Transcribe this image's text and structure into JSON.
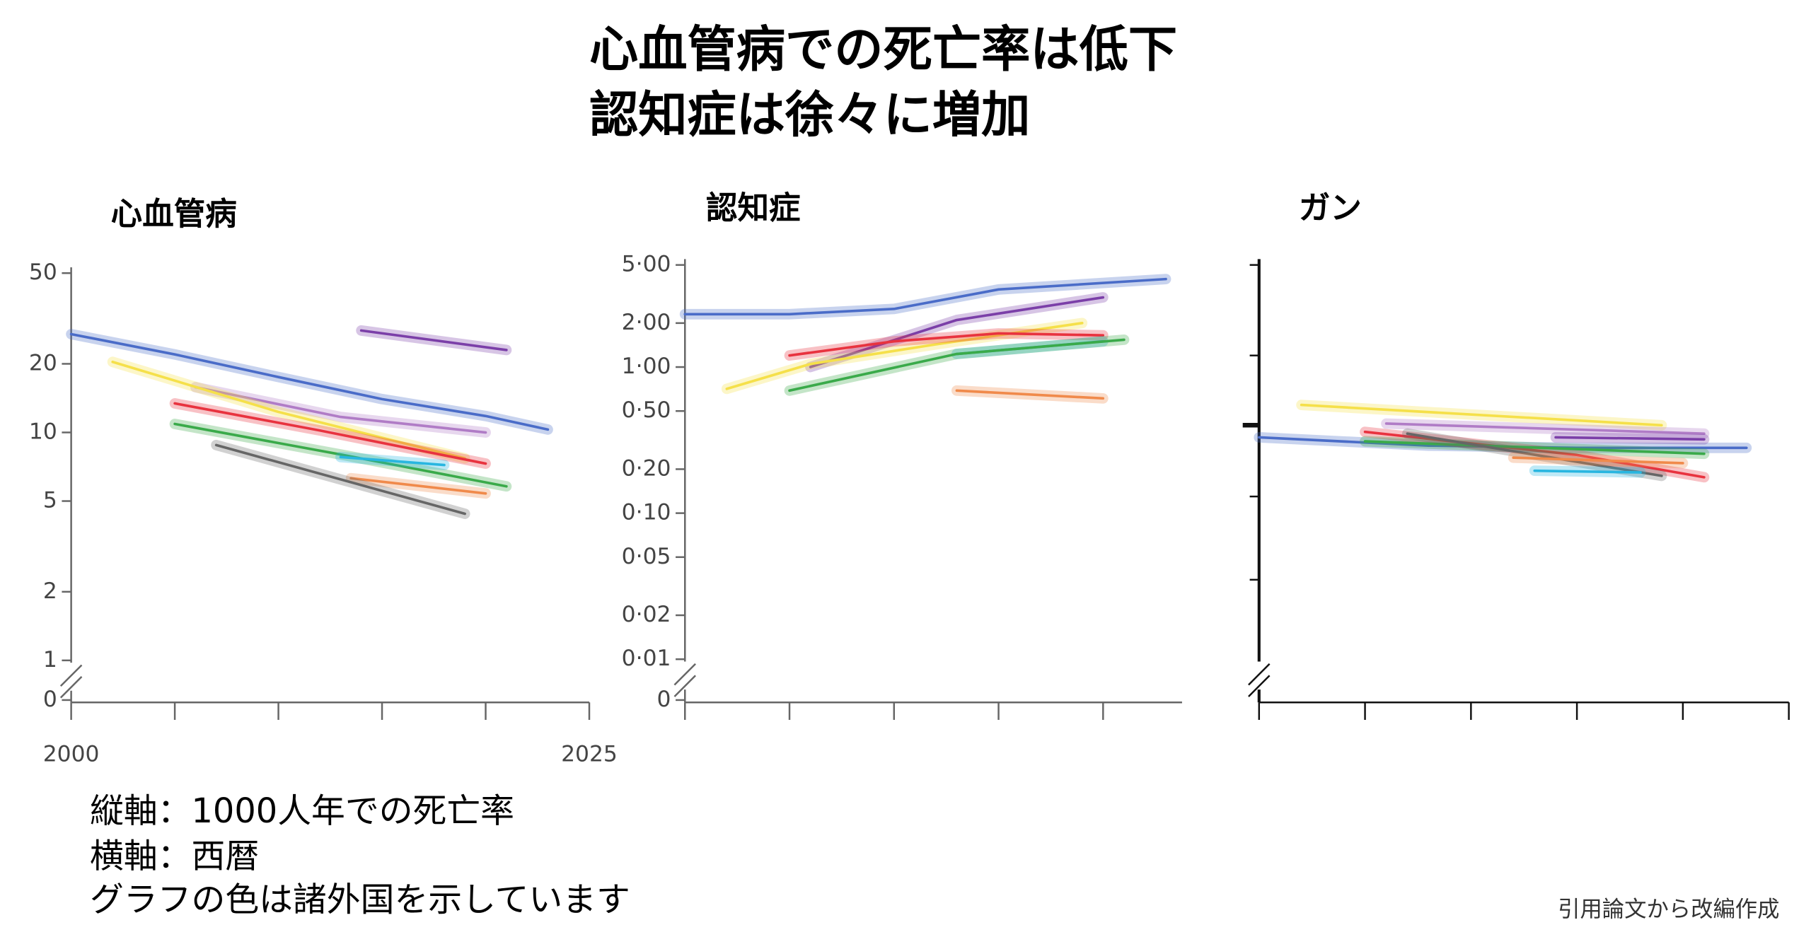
{
  "page": {
    "title_lines": [
      "心血管病での死亡率は低下",
      "認知症は徐々に増加"
    ],
    "notes": [
      "縦軸：1000人年での死亡率",
      "横軸：西暦",
      "グラフの色は諸外国を示しています"
    ],
    "credit": "引用論文から改編作成"
  },
  "chart_data": [
    {
      "type": "line",
      "title": "心血管病",
      "yscale": "log",
      "xlim": [
        2000,
        2025
      ],
      "xticks": [
        2000,
        2025
      ],
      "minor_xticks": [
        2000,
        2005,
        2010,
        2015,
        2020,
        2025
      ],
      "ylim": [
        1,
        50
      ],
      "yticks": [
        1,
        2,
        5,
        10,
        20,
        50
      ],
      "zero_tick": 0,
      "series": [
        {
          "color": "#4a6cc8",
          "x": [
            2000,
            2005,
            2010,
            2015,
            2020,
            2023
          ],
          "values": [
            27,
            22,
            17.5,
            14,
            11.8,
            10.3
          ]
        },
        {
          "color": "#7b3fa8",
          "x": [
            2014,
            2021
          ],
          "values": [
            28,
            23
          ]
        },
        {
          "color": "#b07cc6",
          "x": [
            2006,
            2013,
            2020
          ],
          "values": [
            15.8,
            11.7,
            10
          ]
        },
        {
          "color": "#f5e04a",
          "x": [
            2002,
            2010,
            2019
          ],
          "values": [
            20.4,
            12.3,
            7.7
          ]
        },
        {
          "color": "#e8333f",
          "x": [
            2005,
            2012,
            2020
          ],
          "values": [
            13.4,
            10.2,
            7.3
          ]
        },
        {
          "color": "#3aaa4a",
          "x": [
            2005,
            2013,
            2021
          ],
          "values": [
            10.9,
            8,
            5.8
          ]
        },
        {
          "color": "#29b6e0",
          "x": [
            2013,
            2018
          ],
          "values": [
            7.8,
            7.2
          ]
        },
        {
          "color": "#f08a4b",
          "x": [
            2013.5,
            2020
          ],
          "values": [
            6.3,
            5.4
          ]
        },
        {
          "color": "#666666",
          "x": [
            2007,
            2019
          ],
          "values": [
            8.8,
            4.4
          ]
        }
      ]
    },
    {
      "type": "line",
      "title": "認知症",
      "yscale": "log",
      "xlim": [
        2000,
        2024
      ],
      "minor_xticks": [
        2000,
        2005,
        2010,
        2015,
        2020
      ],
      "ylim": [
        0.01,
        5
      ],
      "yticks": [
        {
          "value": 0.01,
          "label": "0·01"
        },
        {
          "value": 0.02,
          "label": "0·02"
        },
        {
          "value": 0.05,
          "label": "0·05"
        },
        {
          "value": 0.1,
          "label": "0·10"
        },
        {
          "value": 0.2,
          "label": "0·20"
        },
        {
          "value": 0.5,
          "label": "0·50"
        },
        {
          "value": 1,
          "label": "1·00"
        },
        {
          "value": 2,
          "label": "2·00"
        },
        {
          "value": 5,
          "label": "5·00"
        }
      ],
      "zero_tick": 0,
      "series": [
        {
          "color": "#4a6cc8",
          "x": [
            2000,
            2005,
            2010,
            2015,
            2023
          ],
          "values": [
            2.3,
            2.3,
            2.5,
            3.4,
            4.0
          ]
        },
        {
          "color": "#7b3fa8",
          "x": [
            2006,
            2013,
            2020
          ],
          "values": [
            1.0,
            2.1,
            3.0
          ]
        },
        {
          "color": "#f5e04a",
          "x": [
            2002,
            2006,
            2012,
            2019
          ],
          "values": [
            0.71,
            1.05,
            1.43,
            2.0
          ]
        },
        {
          "color": "#e8333f",
          "x": [
            2005,
            2010,
            2015,
            2020
          ],
          "values": [
            1.2,
            1.5,
            1.7,
            1.65
          ]
        },
        {
          "color": "#29b6e0",
          "x": [
            2013,
            2020
          ],
          "values": [
            1.23,
            1.5
          ]
        },
        {
          "color": "#3aaa4a",
          "x": [
            2005,
            2013,
            2021
          ],
          "values": [
            0.69,
            1.23,
            1.54
          ]
        },
        {
          "color": "#f08a4b",
          "x": [
            2013,
            2020
          ],
          "values": [
            0.69,
            0.61
          ]
        }
      ]
    },
    {
      "type": "line",
      "title": "ガン",
      "yscale": "log",
      "xlim": [
        2000,
        2025
      ],
      "minor_xticks": [
        2000,
        2005,
        2010,
        2015,
        2020,
        2025
      ],
      "ylim": [
        0.01,
        5
      ],
      "minor_yticks": [
        0.035,
        0.13,
        0.4,
        1.2,
        5
      ],
      "highlight_ytick": 0.4,
      "series": [
        {
          "color": "#f5e04a",
          "x": [
            2002,
            2019
          ],
          "values": [
            0.55,
            0.4
          ]
        },
        {
          "color": "#4a6cc8",
          "x": [
            2000,
            2008,
            2015,
            2023
          ],
          "values": [
            0.33,
            0.29,
            0.28,
            0.28
          ]
        },
        {
          "color": "#b07cc6",
          "x": [
            2006,
            2021
          ],
          "values": [
            0.41,
            0.35
          ]
        },
        {
          "color": "#7b3fa8",
          "x": [
            2014,
            2021
          ],
          "values": [
            0.33,
            0.32
          ]
        },
        {
          "color": "#e8333f",
          "x": [
            2005,
            2015,
            2021
          ],
          "values": [
            0.36,
            0.25,
            0.176
          ]
        },
        {
          "color": "#3aaa4a",
          "x": [
            2005,
            2021
          ],
          "values": [
            0.31,
            0.255
          ]
        },
        {
          "color": "#666666",
          "x": [
            2007,
            2019
          ],
          "values": [
            0.35,
            0.18
          ]
        },
        {
          "color": "#f08a4b",
          "x": [
            2012,
            2020
          ],
          "values": [
            0.24,
            0.22
          ]
        },
        {
          "color": "#29b6e0",
          "x": [
            2013,
            2018
          ],
          "values": [
            0.195,
            0.19
          ]
        }
      ]
    }
  ]
}
